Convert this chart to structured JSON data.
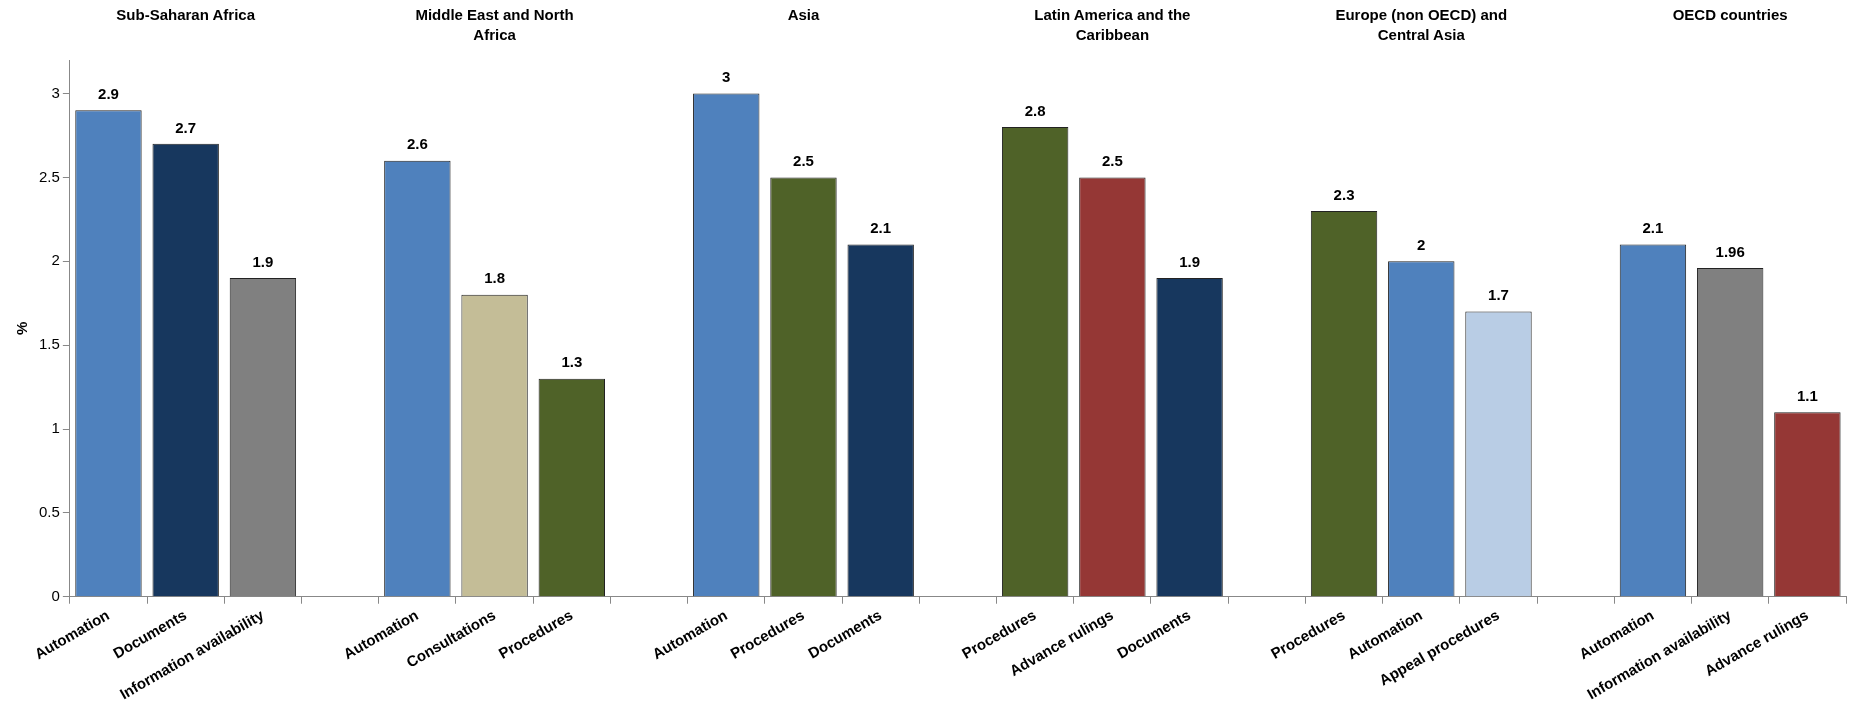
{
  "chart_data": {
    "type": "bar",
    "ylabel": "%",
    "categories": [
      "Automation",
      "Documents",
      "Information availability",
      null,
      "Automation",
      "Consultations",
      "Procedures",
      null,
      "Automation",
      "Procedures",
      "Documents",
      null,
      "Procedures",
      "Advance rulings",
      "Documents",
      null,
      "Procedures",
      "Automation",
      "Appeal procedures",
      null,
      "Automation",
      "Information availability",
      "Advance rulings"
    ],
    "values": [
      2.9,
      2.7,
      1.9,
      null,
      2.6,
      1.8,
      1.3,
      null,
      3,
      2.5,
      2.1,
      null,
      2.8,
      2.5,
      1.9,
      null,
      2.3,
      2,
      1.7,
      null,
      2.1,
      1.96,
      1.1
    ],
    "colors": [
      "#4f81bd",
      "#17375e",
      "#808080",
      null,
      "#4f81bd",
      "#c4bd97",
      "#4f6228",
      null,
      "#4f81bd",
      "#4f6228",
      "#17375e",
      null,
      "#4f6228",
      "#953735",
      "#17375e",
      null,
      "#4f6228",
      "#4f81bd",
      "#b9cde5",
      null,
      "#4f81bd",
      "#808080",
      "#953735"
    ],
    "ylim": [
      0,
      3.2
    ],
    "yticks": [
      0,
      0.5,
      1,
      1.5,
      2,
      2.5,
      3
    ],
    "data_labels": true,
    "annotations": [
      "Sub-Saharan Africa",
      "Middle East and North Africa",
      "Asia",
      "Latin America and the Caribbean",
      "Europe (non OECD) and Central Asia",
      "OECD countries"
    ]
  }
}
